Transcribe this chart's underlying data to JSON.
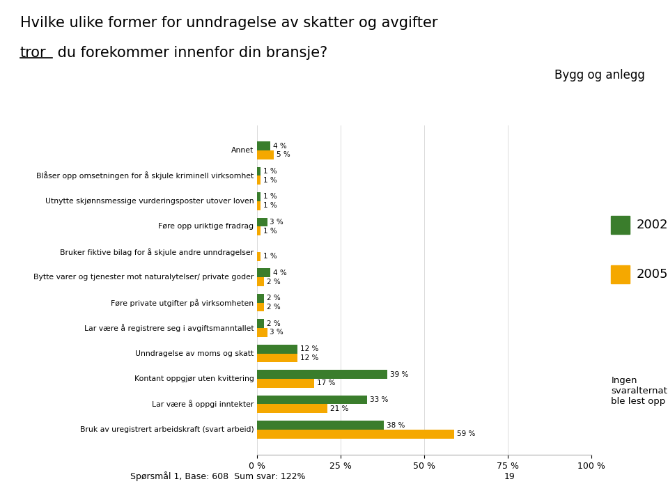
{
  "title_line1": "Hvilke ulike former for unndragelse av skatter og avgifter",
  "title_line2_underlined": "tror",
  "title_line2_rest": " du forekommer innenfor din bransje?",
  "subtitle": "Bygg og anlegg",
  "categories": [
    "Bruk av uregistrert arbeidskraft (svart arbeid)",
    "Lar være å oppgi inntekter",
    "Kontant oppgjør uten kvittering",
    "Unndragelse av moms og skatt",
    "Lar være å registrere seg i avgiftsmanntallet",
    "Føre private utgifter på virksomheten",
    "Bytte varer og tjenester mot naturalytelser/ private goder",
    "Bruker fiktive bilag for å skjule andre unndragelser",
    "Føre opp uriktige fradrag",
    "Utnytte skjønnsmessige vurderingsposter utover loven",
    "Blåser opp omsetningen for å skjule kriminell virksomhet",
    "Annet"
  ],
  "values_2002": [
    38,
    33,
    39,
    12,
    2,
    2,
    4,
    0,
    3,
    1,
    1,
    4
  ],
  "values_2005": [
    59,
    21,
    17,
    12,
    3,
    2,
    2,
    1,
    1,
    1,
    1,
    5
  ],
  "color_2002": "#3a7d2c",
  "color_2005": "#f5a800",
  "xlim": [
    0,
    100
  ],
  "xticks": [
    0,
    25,
    50,
    75,
    100
  ],
  "xtick_labels": [
    "0 %",
    "25 %",
    "50 %",
    "75 %",
    "100 %"
  ],
  "legend_2002": "2002",
  "legend_2005": "2005",
  "footnote": "Spørsmål 1, Base: 608  Sum svar: 122%",
  "page_number": "19",
  "ingen_text": "Ingen\nsvaralternativer\nble lest opp",
  "background_color": "#ffffff",
  "bar_height": 0.35
}
